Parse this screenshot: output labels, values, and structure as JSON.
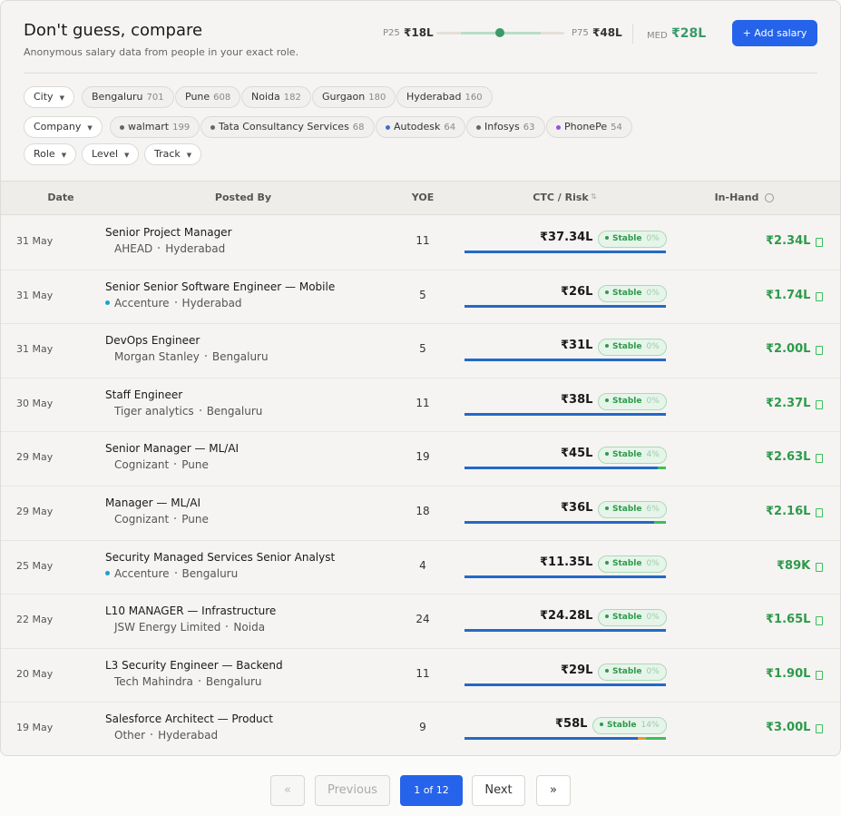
{
  "header": {
    "title": "Don't guess, compare",
    "subtitle": "Anonymous salary data from people in your exact role.",
    "p25_label": "P25",
    "p25": "₹18L",
    "p75_label": "P75",
    "p75": "₹48L",
    "med_label": "MED",
    "med": "₹28L",
    "add_button": "+ Add salary"
  },
  "filters": {
    "city": {
      "label": "City",
      "chips": [
        {
          "name": "Bengaluru",
          "count": "701"
        },
        {
          "name": "Pune",
          "count": "608"
        },
        {
          "name": "Noida",
          "count": "182"
        },
        {
          "name": "Gurgaon",
          "count": "180"
        },
        {
          "name": "Hyderabad",
          "count": "160"
        }
      ]
    },
    "company": {
      "label": "Company",
      "chips": [
        {
          "name": "walmart",
          "count": "199",
          "dot": "#666"
        },
        {
          "name": "Tata Consultancy Services",
          "count": "68",
          "dot": "#666"
        },
        {
          "name": "Autodesk",
          "count": "64",
          "dot": "#3b6fd8"
        },
        {
          "name": "Infosys",
          "count": "63",
          "dot": "#666"
        },
        {
          "name": "PhonePe",
          "count": "54",
          "dot": "#9b4fe0"
        }
      ]
    },
    "others": [
      "Role",
      "Level",
      "Track"
    ]
  },
  "table": {
    "headers": [
      "Date",
      "Posted By",
      "YOE",
      "CTC / Risk",
      "In-Hand"
    ],
    "rows": [
      {
        "date": "31 May",
        "role": "Senior Project Manager",
        "company": "AHEAD",
        "city": "Hyderabad",
        "yoe": "11",
        "ctc": "₹37.34L",
        "risk": "Stable",
        "risk_pct": "0%",
        "inhand": "₹2.34L"
      },
      {
        "date": "31 May",
        "role": "Senior Senior Software Engineer — Mobile",
        "company": "Accenture",
        "dot": "#1aa3c8",
        "city": "Hyderabad",
        "yoe": "5",
        "ctc": "₹26L",
        "risk": "Stable",
        "risk_pct": "0%",
        "inhand": "₹1.74L"
      },
      {
        "date": "31 May",
        "role": "DevOps Engineer",
        "company": "Morgan Stanley",
        "city": "Bengaluru",
        "yoe": "5",
        "ctc": "₹31L",
        "risk": "Stable",
        "risk_pct": "0%",
        "inhand": "₹2.00L"
      },
      {
        "date": "30 May",
        "role": "Staff Engineer",
        "company": "Tiger analytics",
        "city": "Bengaluru",
        "yoe": "11",
        "ctc": "₹38L",
        "risk": "Stable",
        "risk_pct": "0%",
        "inhand": "₹2.37L"
      },
      {
        "date": "29 May",
        "role": "Senior Manager — ML/AI",
        "company": "Cognizant",
        "city": "Pune",
        "yoe": "19",
        "ctc": "₹45L",
        "risk": "Stable",
        "risk_pct": "4%",
        "inhand": "₹2.63L"
      },
      {
        "date": "29 May",
        "role": "Manager — ML/AI",
        "company": "Cognizant",
        "city": "Pune",
        "yoe": "18",
        "ctc": "₹36L",
        "risk": "Stable",
        "risk_pct": "6%",
        "inhand": "₹2.16L"
      },
      {
        "date": "25 May",
        "role": "Security Managed Services Senior Analyst",
        "company": "Accenture",
        "dot": "#1aa3c8",
        "city": "Bengaluru",
        "yoe": "4",
        "ctc": "₹11.35L",
        "risk": "Stable",
        "risk_pct": "0%",
        "inhand": "₹89K"
      },
      {
        "date": "22 May",
        "role": "L10 MANAGER — Infrastructure",
        "company": "JSW Energy Limited",
        "city": "Noida",
        "yoe": "24",
        "ctc": "₹24.28L",
        "risk": "Stable",
        "risk_pct": "0%",
        "inhand": "₹1.65L"
      },
      {
        "date": "20 May",
        "role": "L3 Security Engineer — Backend",
        "company": "Tech Mahindra",
        "city": "Bengaluru",
        "yoe": "11",
        "ctc": "₹29L",
        "risk": "Stable",
        "risk_pct": "0%",
        "inhand": "₹1.90L"
      },
      {
        "date": "19 May",
        "role": "Salesforce Architect — Product",
        "company": "Other",
        "city": "Hyderabad",
        "yoe": "9",
        "ctc": "₹58L",
        "risk": "Stable",
        "risk_pct": "14%",
        "inhand": "₹3.00L"
      }
    ]
  },
  "pagination": {
    "first": "«",
    "previous": "Previous",
    "current": "1 of 12",
    "next": "Next",
    "last": "»"
  }
}
